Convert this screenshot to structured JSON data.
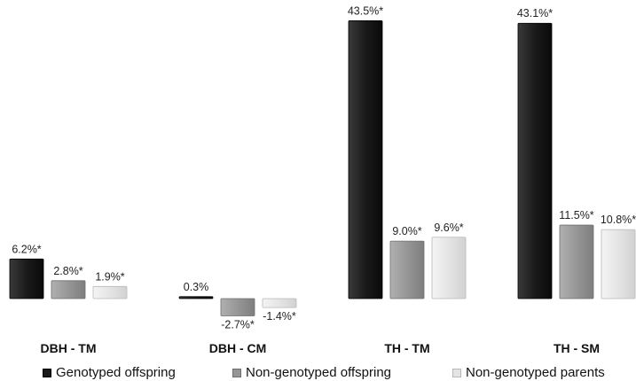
{
  "chart_data": {
    "type": "bar",
    "categories": [
      "DBH - TM",
      "DBH - CM",
      "TH - TM",
      "TH - SM"
    ],
    "series": [
      {
        "name": "Genotyped offspring",
        "values": [
          6.2,
          0.3,
          43.5,
          43.1
        ],
        "labels": [
          "6.2%*",
          "0.3%",
          "43.5%*",
          "43.1%*"
        ],
        "color": "#1e1e1e"
      },
      {
        "name": "Non-genotyped offspring",
        "values": [
          2.8,
          -2.7,
          9.0,
          11.5
        ],
        "labels": [
          "2.8%*",
          "-2.7%*",
          "9.0%*",
          "11.5%*"
        ],
        "color": "#9a9a9a"
      },
      {
        "name": "Non-genotyped parents",
        "values": [
          1.9,
          -1.4,
          9.6,
          10.8
        ],
        "labels": [
          "1.9%*",
          "-1.4%*",
          "9.6%*",
          "10.8%*"
        ],
        "color": "#e6e6e6"
      }
    ],
    "legend_position": "bottom",
    "grid": false
  }
}
